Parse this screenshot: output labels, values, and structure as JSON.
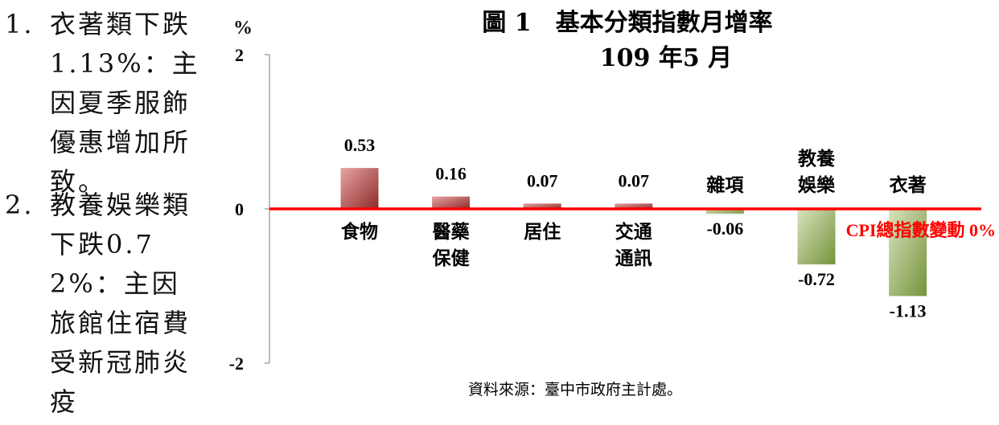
{
  "side_notes": [
    {
      "number": "1.",
      "text": "衣著類下跌1.13%：主因夏季服飾優惠增加所致。"
    },
    {
      "number": "2.",
      "text": "教養娛樂類下跌0.72%：主因旅館住宿費受新冠肺炎疫"
    }
  ],
  "chart_data": {
    "type": "bar",
    "title": "圖 1　基本分類指數月增率",
    "subtitle": "109 年5 月",
    "ylabel": "%",
    "ylim": [
      -2,
      2
    ],
    "yticks": [
      "2",
      "0",
      "-2"
    ],
    "categories": [
      [
        "食物"
      ],
      [
        "醫藥",
        "保健"
      ],
      [
        "居住"
      ],
      [
        "交通",
        "通訊"
      ],
      [
        "雜項"
      ],
      [
        "教養",
        "娛樂"
      ],
      [
        "衣著"
      ]
    ],
    "values": [
      0.53,
      0.16,
      0.07,
      0.07,
      -0.06,
      -0.72,
      -1.13
    ],
    "value_labels": [
      "0.53",
      "0.16",
      "0.07",
      "0.07",
      "-0.06",
      "-0.72",
      "-1.13"
    ],
    "reference_line": {
      "value": 0,
      "label": "CPI總指數變動 0%",
      "color": "#ff0000"
    },
    "colors": {
      "positive": "#c0504d",
      "negative": "#9bbb59"
    },
    "grid": false,
    "source": "資料來源：臺中市政府主計處。"
  }
}
